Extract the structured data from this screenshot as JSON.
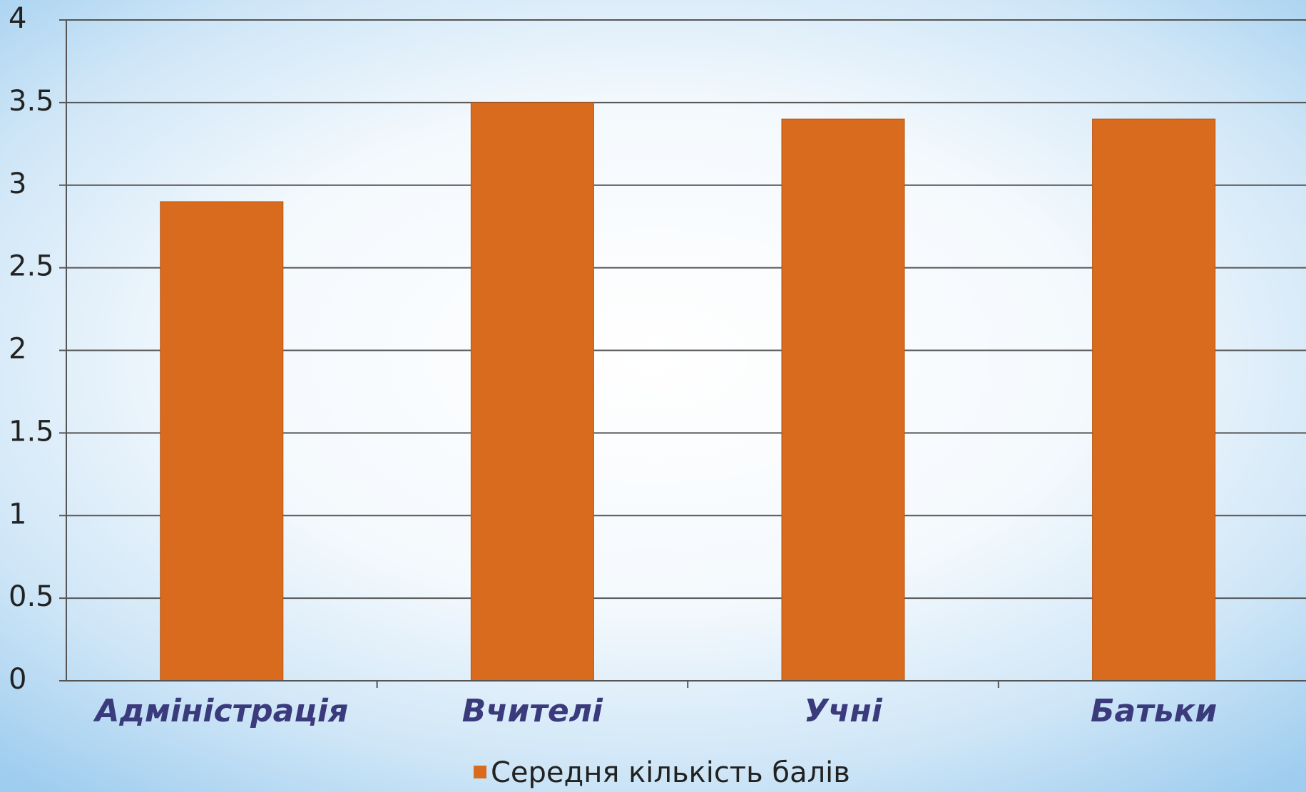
{
  "chart_data": {
    "type": "bar",
    "categories": [
      "Адміністрація",
      "Вчителі",
      "Учні",
      "Батьки"
    ],
    "series": [
      {
        "name": "Середня кількість балів",
        "color": "#d96b1e",
        "values": [
          2.9,
          3.5,
          3.4,
          3.4
        ]
      }
    ],
    "ylim": [
      0,
      4
    ],
    "yticks": [
      0,
      0.5,
      1,
      1.5,
      2,
      2.5,
      3,
      3.5,
      4
    ],
    "grid": true,
    "legend": "bottom"
  }
}
